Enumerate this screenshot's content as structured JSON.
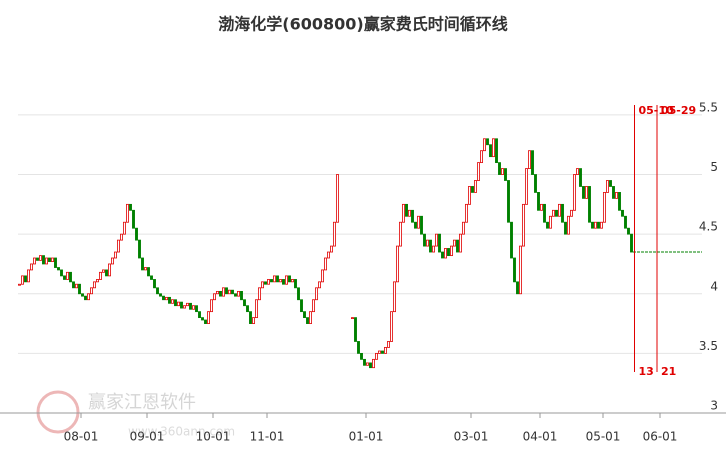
{
  "chart_data": {
    "type": "candlestick",
    "title": "渤海化学(600800)赢家费氏时间循环线",
    "up_color": "#e00000",
    "down_color": "#008000",
    "grid": true,
    "xlim": [
      0,
      228
    ],
    "xticks": [
      {
        "value": 21,
        "label": "08-01"
      },
      {
        "value": 43,
        "label": "09-01"
      },
      {
        "value": 65,
        "label": "10-01"
      },
      {
        "value": 83,
        "label": "11-01"
      },
      {
        "value": 116,
        "label": "01-01"
      },
      {
        "value": 151,
        "label": "03-01"
      },
      {
        "value": 174,
        "label": "04-01"
      },
      {
        "value": 195,
        "label": "05-01"
      },
      {
        "value": 214,
        "label": "06-01"
      }
    ],
    "ylim": [
      3,
      5.6
    ],
    "yticks": [
      3,
      3.5,
      4,
      4.5,
      5,
      5.5
    ],
    "values": [
      4.08,
      4.15,
      4.1,
      4.2,
      4.25,
      4.3,
      4.28,
      4.32,
      4.25,
      4.3,
      4.27,
      4.3,
      4.22,
      4.2,
      4.15,
      4.12,
      4.18,
      4.1,
      4.05,
      4.08,
      4.0,
      3.98,
      3.95,
      4.0,
      4.05,
      4.1,
      4.12,
      4.18,
      4.2,
      4.15,
      4.25,
      4.3,
      4.35,
      4.45,
      4.5,
      4.6,
      4.75,
      4.7,
      4.55,
      4.45,
      4.3,
      4.2,
      4.22,
      4.15,
      4.12,
      4.05,
      4.0,
      3.98,
      3.95,
      3.97,
      3.92,
      3.95,
      3.9,
      3.93,
      3.88,
      3.9,
      3.92,
      3.87,
      3.9,
      3.85,
      3.8,
      3.78,
      3.75,
      3.85,
      3.95,
      4.0,
      4.02,
      3.98,
      4.05,
      4.0,
      4.03,
      4.0,
      3.98,
      4.02,
      3.95,
      3.9,
      3.85,
      3.75,
      3.8,
      3.95,
      4.05,
      4.1,
      4.08,
      4.12,
      4.1,
      4.15,
      4.1,
      4.12,
      4.08,
      4.15,
      4.1,
      4.12,
      4.05,
      3.95,
      3.85,
      3.8,
      3.75,
      3.85,
      3.95,
      4.05,
      4.1,
      4.2,
      4.3,
      4.35,
      4.4,
      4.6,
      5.0,
      null,
      null,
      null,
      null,
      3.8,
      3.6,
      3.5,
      3.45,
      3.4,
      3.42,
      3.38,
      3.45,
      3.5,
      3.52,
      3.5,
      3.55,
      3.6,
      3.85,
      4.1,
      4.4,
      4.6,
      4.75,
      4.65,
      4.7,
      4.6,
      4.55,
      4.65,
      4.5,
      4.4,
      4.45,
      4.35,
      4.4,
      4.5,
      4.35,
      4.3,
      4.38,
      4.32,
      4.4,
      4.45,
      4.35,
      4.5,
      4.6,
      4.75,
      4.9,
      4.85,
      4.95,
      5.1,
      5.2,
      5.3,
      5.25,
      5.15,
      5.3,
      5.1,
      5.0,
      5.05,
      4.95,
      4.6,
      4.3,
      4.1,
      4.0,
      4.4,
      4.75,
      5.05,
      5.2,
      5.0,
      4.85,
      4.7,
      4.75,
      4.6,
      4.55,
      4.65,
      4.7,
      4.65,
      4.75,
      4.6,
      4.5,
      4.65,
      4.7,
      5.0,
      5.05,
      4.9,
      4.8,
      4.9,
      4.6,
      4.55,
      4.6,
      4.55,
      4.6,
      4.85,
      4.95,
      4.9,
      4.8,
      4.85,
      4.7,
      4.65,
      4.55,
      4.5,
      4.35
    ],
    "reference_line": {
      "value": 4.35,
      "color": "#008000"
    },
    "cycle_lines": [
      {
        "x": 205.5,
        "date": "05-10",
        "count": 13
      },
      {
        "x": 213,
        "date": "05-29",
        "count": 21
      }
    ],
    "cycle_color": "#e00000",
    "watermark": {
      "name": "赢家江恩软件",
      "url": "www.360ann.com"
    }
  }
}
